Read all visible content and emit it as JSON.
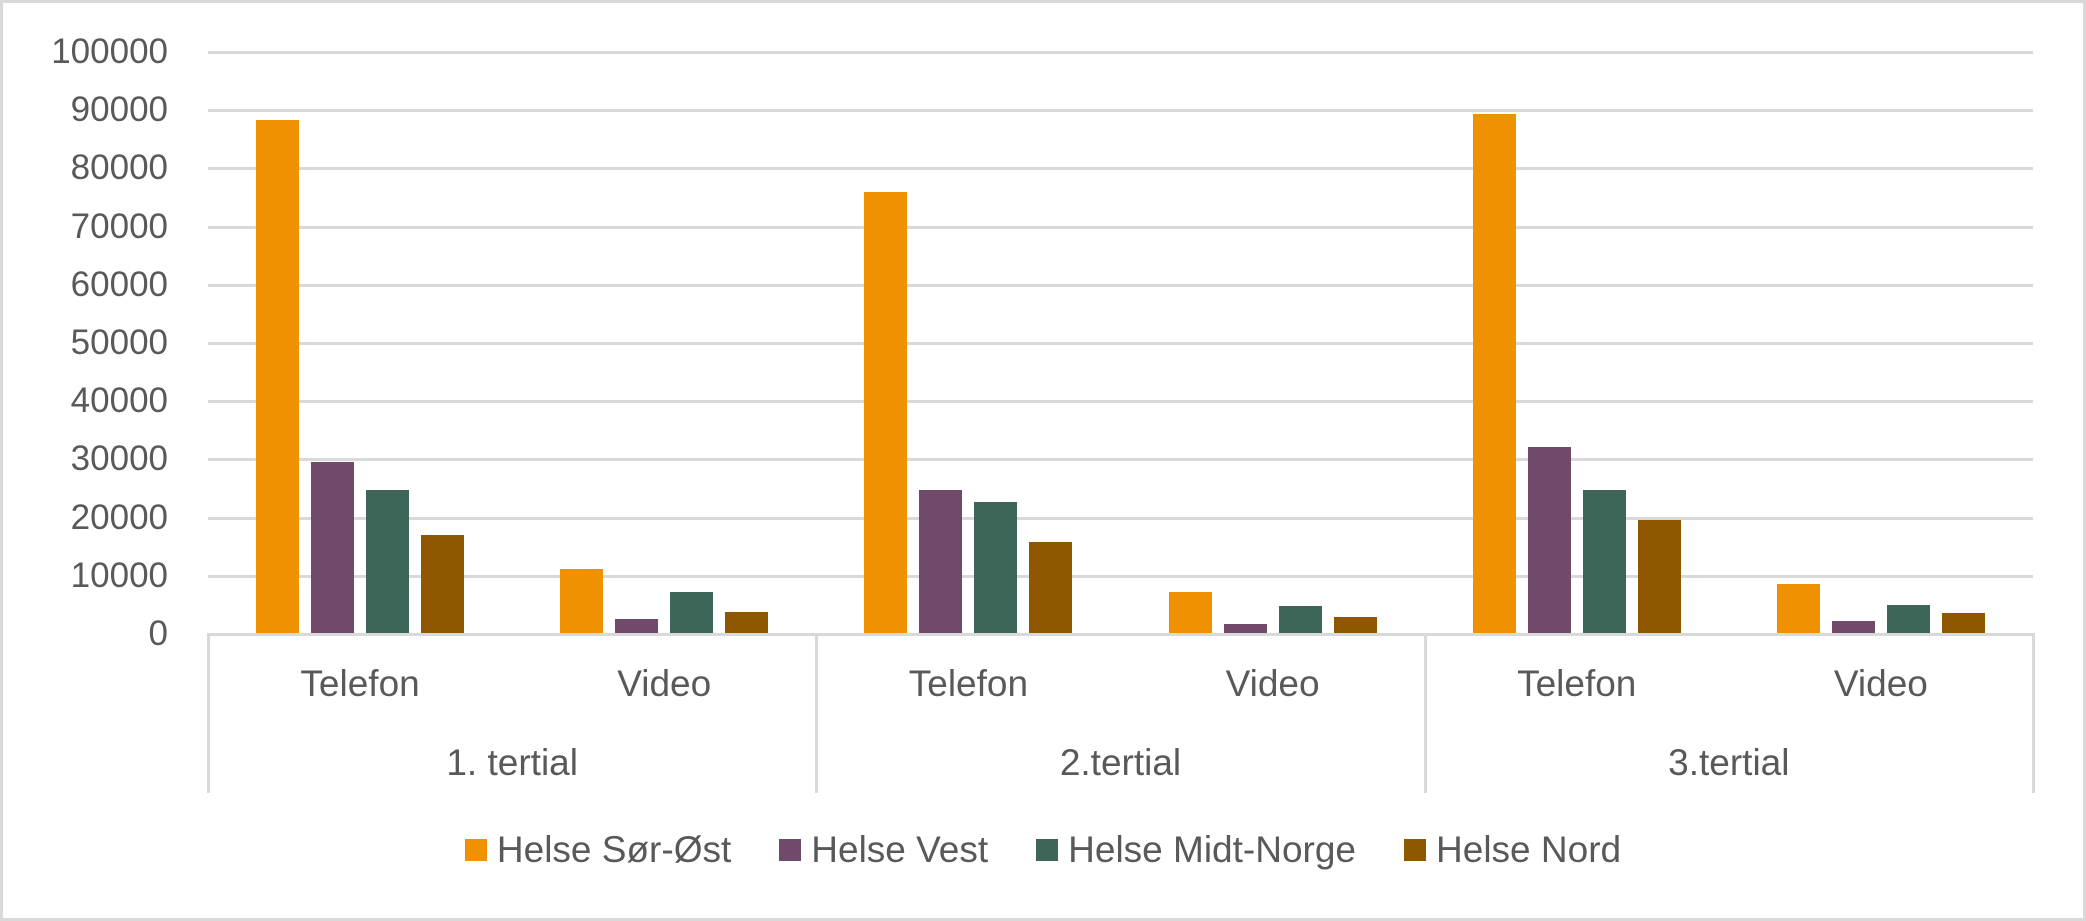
{
  "chart_data": {
    "type": "bar",
    "title": "",
    "xlabel": "",
    "ylabel": "",
    "ylim": [
      0,
      100000
    ],
    "yticks": [
      0,
      10000,
      20000,
      30000,
      40000,
      50000,
      60000,
      70000,
      80000,
      90000,
      100000
    ],
    "ytick_labels": [
      "0",
      "10000",
      "20000",
      "30000",
      "40000",
      "50000",
      "60000",
      "70000",
      "80000",
      "90000",
      "100000"
    ],
    "grid": true,
    "legend_position": "bottom",
    "groups": [
      "1. tertial",
      "2.tertial",
      "3.tertial"
    ],
    "categories": [
      "Telefon",
      "Video",
      "Telefon",
      "Video",
      "Telefon",
      "Video"
    ],
    "category_groups": [
      "1. tertial",
      "1. tertial",
      "2.tertial",
      "2.tertial",
      "3.tertial",
      "3.tertial"
    ],
    "series": [
      {
        "name": "Helse Sør-Øst",
        "color": "#ef9100",
        "values": [
          88300,
          11200,
          76000,
          7200,
          89300,
          8600
        ]
      },
      {
        "name": "Helse Vest",
        "color": "#6f4a6b",
        "values": [
          29500,
          2500,
          24800,
          1800,
          32100,
          2200
        ]
      },
      {
        "name": "Helse Midt-Norge",
        "color": "#3d6658",
        "values": [
          24700,
          7200,
          22700,
          4800,
          24800,
          5000
        ]
      },
      {
        "name": "Helse Nord",
        "color": "#8f5700",
        "values": [
          17000,
          3700,
          15800,
          2900,
          19600,
          3600
        ]
      }
    ]
  },
  "legend": [
    {
      "label": "Helse Sør-Øst",
      "color": "#ef9100"
    },
    {
      "label": "Helse Vest",
      "color": "#6f4a6b"
    },
    {
      "label": "Helse Midt-Norge",
      "color": "#3d6658"
    },
    {
      "label": "Helse Nord",
      "color": "#8f5700"
    }
  ]
}
